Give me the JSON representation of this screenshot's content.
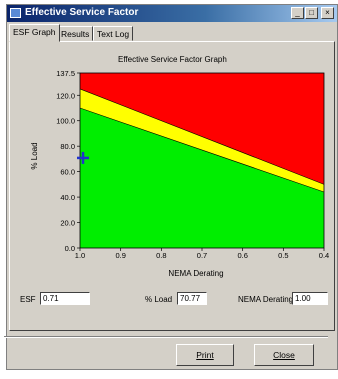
{
  "window": {
    "title": "Effective Service Factor",
    "min_glyph": "_",
    "max_glyph": "□",
    "close_glyph": "×"
  },
  "tabs": [
    {
      "label": "ESF Graph",
      "active": true
    },
    {
      "label": "Results",
      "active": false
    },
    {
      "label": "Text Log",
      "active": false
    }
  ],
  "graph": {
    "title": "Effective Service Factor Graph",
    "xlabel": "NEMA Derating",
    "ylabel": "% Load"
  },
  "chart_data": {
    "type": "area",
    "title": "Effective Service Factor Graph",
    "xlabel": "NEMA Derating",
    "ylabel": "% Load",
    "xlim": [
      1.0,
      0.4
    ],
    "ylim": [
      0,
      137.5
    ],
    "x_ticks": [
      "1.0",
      "0.9",
      "0.8",
      "0.7",
      "0.6",
      "0.5",
      "0.4"
    ],
    "y_ticks": [
      "0.0",
      "20.0",
      "40.0",
      "60.0",
      "80.0",
      "100.0",
      "120.0",
      "137.5"
    ],
    "series": [
      {
        "name": "",
        "x": [
          1.0,
          0.4
        ],
        "y": [
          110,
          44
        ],
        "color": "#00ee00"
      },
      {
        "name": "",
        "x": [
          1.0,
          0.4
        ],
        "y": [
          125,
          50
        ],
        "color": "#ffff00"
      }
    ],
    "region_above_color": "#ff0000",
    "marker": {
      "x": 1.0,
      "y": 70.77,
      "color": "#2233cc"
    }
  },
  "fields": {
    "esf_label": "ESF",
    "esf_value": "0.71",
    "load_label": "% Load",
    "load_value": "70.77",
    "derating_label": "NEMA Derating",
    "derating_value": "1.00"
  },
  "buttons": {
    "print": "Print",
    "close": "Close"
  }
}
